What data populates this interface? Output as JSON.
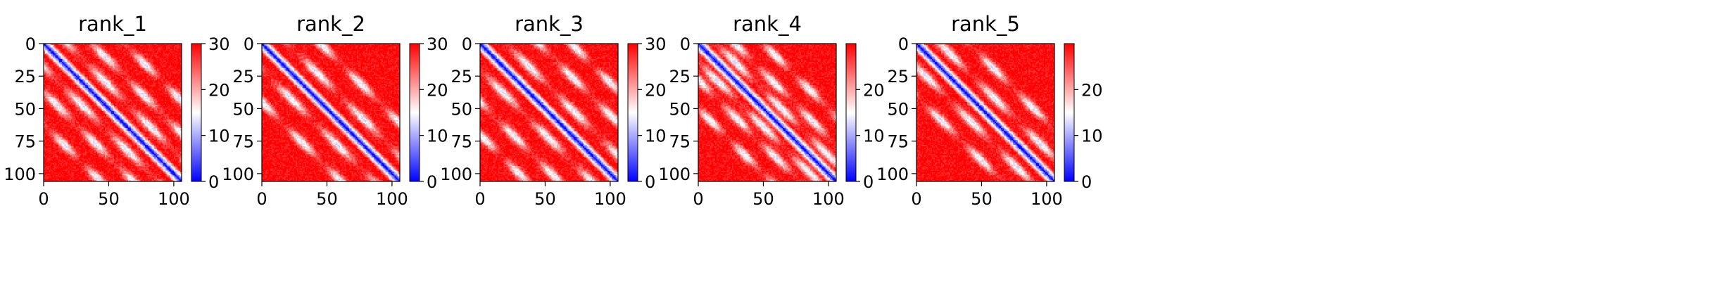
{
  "chart_data": [
    {
      "type": "heatmap",
      "title": "rank_1",
      "colormap": "bwr",
      "x_ticks": [
        0,
        50,
        100
      ],
      "y_ticks": [
        0,
        25,
        50,
        75,
        100
      ],
      "x_range": [
        0,
        106
      ],
      "y_range": [
        0,
        106
      ],
      "y_inverted": true,
      "colorbar": {
        "ticks": [
          0,
          10,
          20,
          30
        ],
        "range": [
          0,
          30
        ]
      },
      "matrix_size": 106,
      "diagonal_band_halfwidth": 6,
      "contact_bands_offsets": [
        18,
        37,
        62
      ]
    },
    {
      "type": "heatmap",
      "title": "rank_2",
      "colormap": "bwr",
      "x_ticks": [
        0,
        50,
        100
      ],
      "y_ticks": [
        0,
        25,
        50,
        75,
        100
      ],
      "x_range": [
        0,
        106
      ],
      "y_range": [
        0,
        106
      ],
      "y_inverted": true,
      "colorbar": {
        "ticks": [
          0,
          10,
          20,
          30
        ],
        "range": [
          0,
          30
        ]
      },
      "matrix_size": 106,
      "diagonal_band_halfwidth": 6,
      "contact_bands_offsets": [
        20,
        45
      ]
    },
    {
      "type": "heatmap",
      "title": "rank_3",
      "colormap": "bwr",
      "x_ticks": [
        0,
        50,
        100
      ],
      "y_ticks": [
        0,
        25,
        50,
        75,
        100
      ],
      "x_range": [
        0,
        106
      ],
      "y_range": [
        0,
        106
      ],
      "y_inverted": true,
      "colorbar": {
        "ticks": [
          0,
          10,
          20,
          30
        ],
        "range": [
          0,
          30
        ]
      },
      "matrix_size": 106,
      "diagonal_band_halfwidth": 6,
      "contact_bands_offsets": [
        20,
        45,
        70
      ]
    },
    {
      "type": "heatmap",
      "title": "rank_4",
      "colormap": "bwr",
      "x_ticks": [
        0,
        50,
        100
      ],
      "y_ticks": [
        0,
        25,
        50,
        75,
        100
      ],
      "x_range": [
        0,
        106
      ],
      "y_range": [
        0,
        106
      ],
      "y_inverted": true,
      "colorbar": {
        "ticks": [
          0,
          10,
          20
        ],
        "range": [
          0,
          30
        ]
      },
      "matrix_size": 106,
      "diagonal_band_halfwidth": 6,
      "contact_bands_offsets": [
        14,
        28,
        50
      ]
    },
    {
      "type": "heatmap",
      "title": "rank_5",
      "colormap": "bwr",
      "x_ticks": [
        0,
        50,
        100
      ],
      "y_ticks": [
        0,
        25,
        50,
        75,
        100
      ],
      "x_range": [
        0,
        106
      ],
      "y_range": [
        0,
        106
      ],
      "y_inverted": true,
      "colorbar": {
        "ticks": [
          0,
          10,
          20
        ],
        "range": [
          0,
          30
        ]
      },
      "matrix_size": 106,
      "diagonal_band_halfwidth": 6,
      "contact_bands_offsets": [
        18,
        40
      ]
    }
  ]
}
